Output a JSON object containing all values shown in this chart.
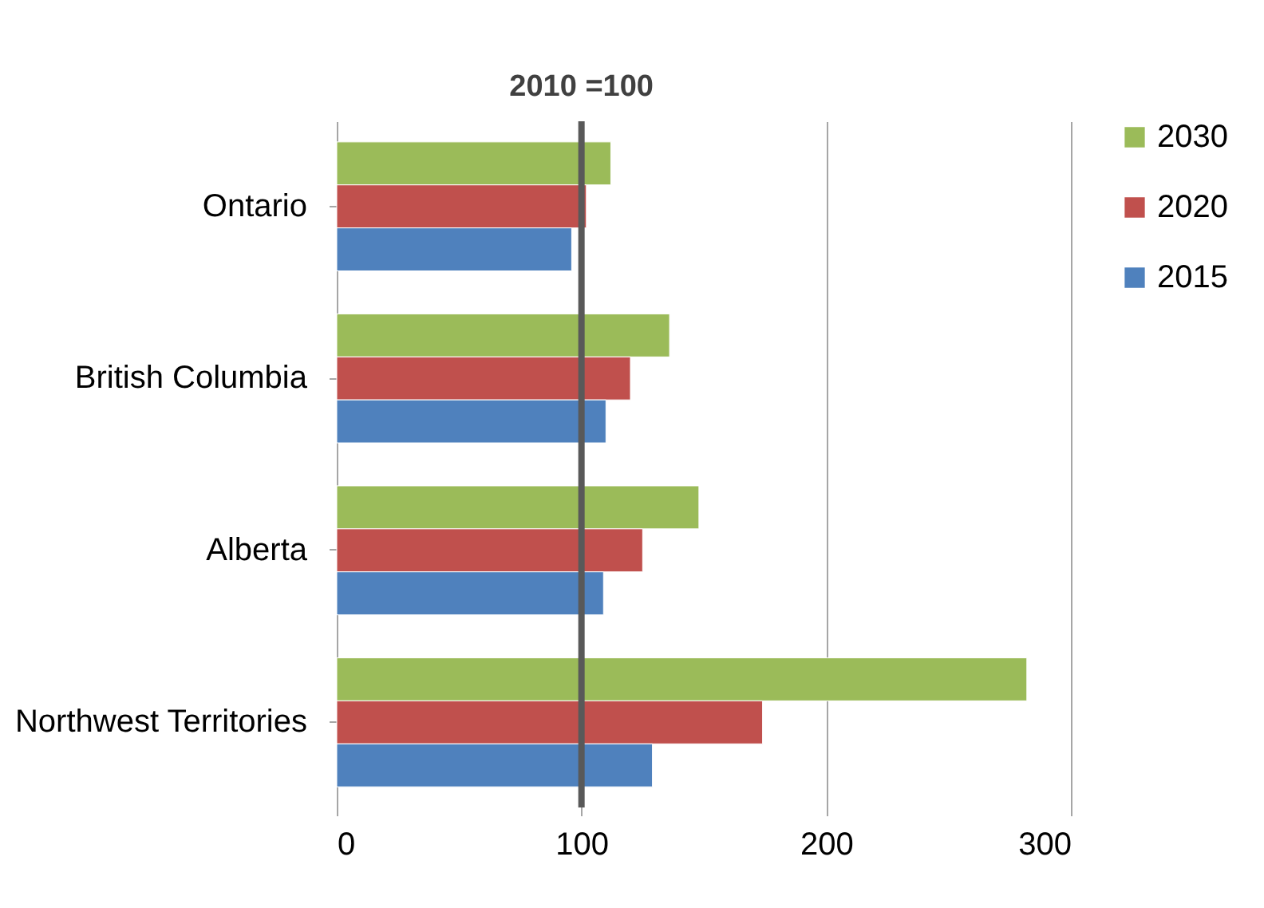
{
  "chart_data": {
    "type": "bar",
    "orientation": "horizontal",
    "categories": [
      "Ontario",
      "British Columbia",
      "Alberta",
      "Northwest Territories"
    ],
    "series": [
      {
        "name": "2030",
        "color": "#9bbb59",
        "values": [
          112,
          136,
          148,
          282
        ]
      },
      {
        "name": "2020",
        "color": "#c0504d",
        "values": [
          102,
          120,
          125,
          174
        ]
      },
      {
        "name": "2015",
        "color": "#4f81bd",
        "values": [
          96,
          110,
          109,
          129
        ]
      }
    ],
    "xlim": [
      0,
      300
    ],
    "xticks": [
      0,
      100,
      200,
      300
    ],
    "grid": "x",
    "legend": "top right",
    "ref_lines": [
      {
        "axis": "x",
        "value": 100,
        "label": "2010 =100",
        "color": "#595959"
      }
    ]
  }
}
